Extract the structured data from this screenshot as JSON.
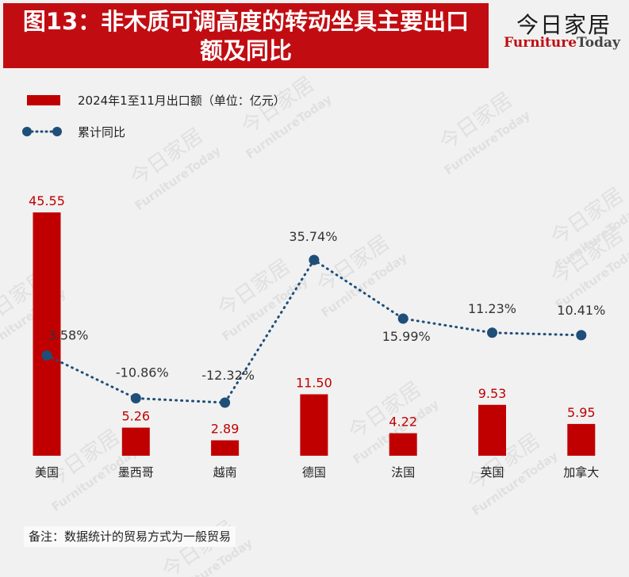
{
  "header": {
    "title_line1": "图13：非木质可调高度的转动坐具主要出口",
    "title_line2": "额及同比",
    "brand_cn": "今日家居",
    "brand_en_a": "Furniture",
    "brand_en_b": "Today"
  },
  "note": "备注：数据统计的贸易方式为一般贸易",
  "watermark": {
    "cn": "今日家居",
    "en": "FurnitureToday"
  },
  "colors": {
    "title_bg": "#c10d12",
    "bar": "#c00000",
    "line": "#1f4e79",
    "bar_label": "#c00000",
    "line_label": "#333333"
  },
  "chart_data": {
    "type": "bar",
    "categories": [
      "美国",
      "墨西哥",
      "越南",
      "德国",
      "法国",
      "英国",
      "加拿大"
    ],
    "series": [
      {
        "name": "2024年1至11月出口额（单位：亿元）",
        "type": "bar",
        "values": [
          45.55,
          5.26,
          2.89,
          11.5,
          4.22,
          9.53,
          5.95
        ],
        "labels": [
          "45.55",
          "5.26",
          "2.89",
          "11.50",
          "4.22",
          "9.53",
          "5.95"
        ]
      },
      {
        "name": "累计同比",
        "type": "line",
        "values": [
          3.58,
          -10.86,
          -12.32,
          35.74,
          15.99,
          11.23,
          10.41
        ],
        "labels": [
          "3.58%",
          "-10.86%",
          "-12.32%",
          "35.74%",
          "15.99%",
          "11.23%",
          "10.41%"
        ]
      }
    ],
    "legend_position": "top-left"
  }
}
